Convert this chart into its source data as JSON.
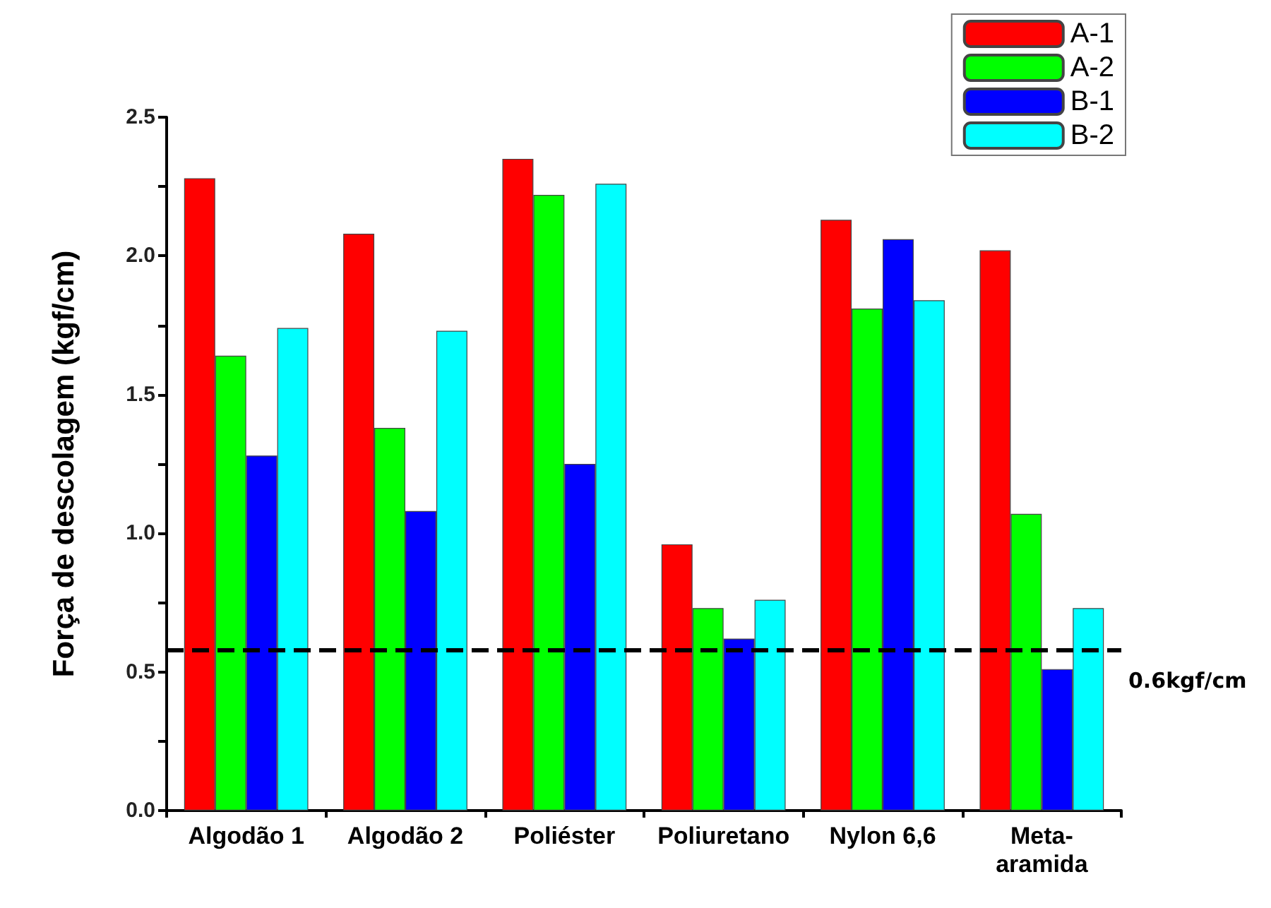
{
  "chart_data": {
    "type": "bar",
    "ylabel": "Força de descolagem (kgf/cm)",
    "categories": [
      "Algodão 1",
      "Algodão 2",
      "Poliéster",
      "Poliuretano",
      "Nylon 6,6",
      "Meta-\naramida"
    ],
    "series": [
      {
        "name": "A-1",
        "color": "#ff0000",
        "values": [
          2.28,
          2.08,
          2.35,
          0.96,
          2.13,
          2.02
        ]
      },
      {
        "name": "A-2",
        "color": "#00ff00",
        "values": [
          1.64,
          1.38,
          2.22,
          0.73,
          1.81,
          1.07
        ]
      },
      {
        "name": "B-1",
        "color": "#0000ff",
        "values": [
          1.28,
          1.08,
          1.25,
          0.62,
          2.06,
          0.51
        ]
      },
      {
        "name": "B-2",
        "color": "#00ffff",
        "values": [
          1.74,
          1.73,
          2.26,
          0.76,
          1.84,
          0.73
        ]
      }
    ],
    "ylim": [
      0,
      2.5
    ],
    "yticks": [
      {
        "value": 0,
        "label": "0.0"
      },
      {
        "value": 0.25,
        "label": null
      },
      {
        "value": 0.5,
        "label": "0.5"
      },
      {
        "value": 0.75,
        "label": null
      },
      {
        "value": 1,
        "label": "1.0"
      },
      {
        "value": 1.25,
        "label": null
      },
      {
        "value": 1.5,
        "label": "1.5"
      },
      {
        "value": 1.75,
        "label": null
      },
      {
        "value": 2,
        "label": "2.0"
      },
      {
        "value": 2.25,
        "label": null
      },
      {
        "value": 2.5,
        "label": "2.5"
      }
    ],
    "ref_lines": [
      {
        "axis": "y",
        "value": 0.58,
        "label": "0.6kgf/cm",
        "line_style": "dashed",
        "color": "#000000"
      }
    ],
    "legend": "top right",
    "grid": false
  }
}
